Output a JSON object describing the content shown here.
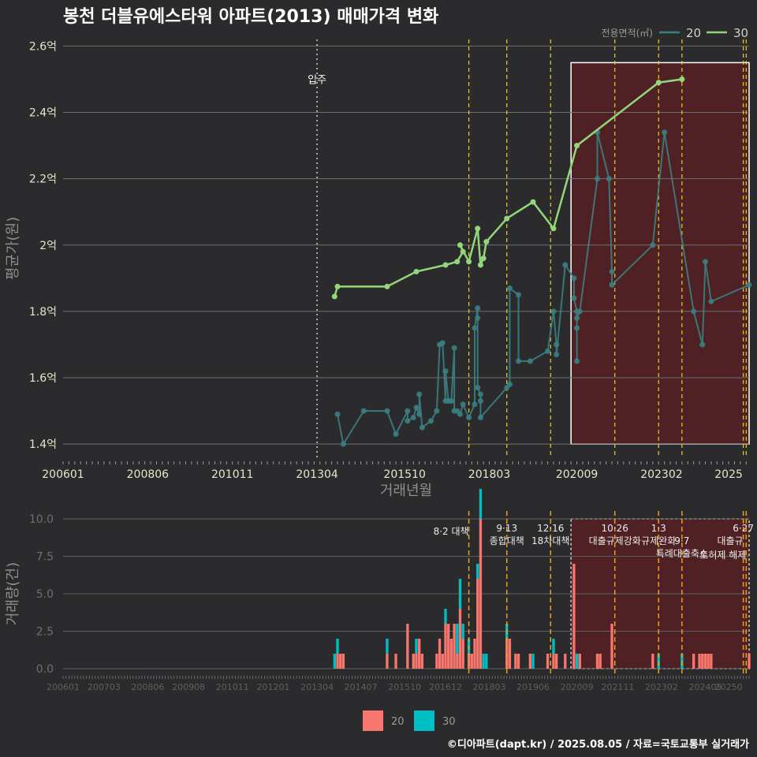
{
  "title": "봉천 더블유에스타워 아파트(2013) 매매가격 변화",
  "legend_top": {
    "title": "전용면적(㎡)",
    "items": [
      {
        "label": "20",
        "color": "#3a7f82"
      },
      {
        "label": "30",
        "color": "#93d77a"
      }
    ]
  },
  "legend_bottom": {
    "items": [
      {
        "label": "20",
        "color": "#f8766d"
      },
      {
        "label": "30",
        "color": "#00bfc4"
      }
    ]
  },
  "footer": "©디아파트(dapt.kr) / 2025.08.05 / 자료=국토교통부 실거래가",
  "chart_data": [
    {
      "type": "line",
      "title": "봉천 더블유에스타워 아파트(2013) 매매가격 변화",
      "xlabel": "거래년월",
      "ylabel": "평균가(원)",
      "x_ticks": [
        "200601",
        "200806",
        "201011",
        "201304",
        "201510",
        "201803",
        "202009",
        "202302",
        "2025"
      ],
      "y_ticks": [
        "1.4억",
        "1.6억",
        "1.8억",
        "2억",
        "2.2억",
        "2.4억",
        "2.6억"
      ],
      "ylim": [
        1.36,
        2.62
      ],
      "xlim": [
        "2006-01",
        "2025-08"
      ],
      "grid": true,
      "legend_position": "top-right",
      "annotations": [
        {
          "x": "2013-04",
          "text": "입주"
        }
      ],
      "highlight": {
        "from": "2020-07",
        "to": "2025-08"
      },
      "vlines": [
        "2017-08",
        "2018-09",
        "2019-12",
        "2021-10",
        "2023-01",
        "2023-09",
        "2025-06",
        "2025-07"
      ],
      "series": [
        {
          "name": "20",
          "color": "#3a7f82",
          "points": [
            [
              "2013-11",
              1.49
            ],
            [
              "2014-01",
              1.4
            ],
            [
              "2014-08",
              1.5
            ],
            [
              "2015-04",
              1.5
            ],
            [
              "2015-07",
              1.43
            ],
            [
              "2015-11",
              1.5
            ],
            [
              "2015-11",
              1.47
            ],
            [
              "2016-01",
              1.48
            ],
            [
              "2016-02",
              1.51
            ],
            [
              "2016-03",
              1.49
            ],
            [
              "2016-03",
              1.55
            ],
            [
              "2016-04",
              1.45
            ],
            [
              "2016-07",
              1.47
            ],
            [
              "2016-09",
              1.5
            ],
            [
              "2016-10",
              1.7
            ],
            [
              "2016-11",
              1.705
            ],
            [
              "2016-12",
              1.53
            ],
            [
              "2016-12",
              1.62
            ],
            [
              "2017-01",
              1.53
            ],
            [
              "2017-02",
              1.53
            ],
            [
              "2017-03",
              1.69
            ],
            [
              "2017-03",
              1.5
            ],
            [
              "2017-04",
              1.5
            ],
            [
              "2017-05",
              1.49
            ],
            [
              "2017-06",
              1.52
            ],
            [
              "2017-08",
              1.48
            ],
            [
              "2017-10",
              1.52
            ],
            [
              "2017-10",
              1.75
            ],
            [
              "2017-11",
              1.81
            ],
            [
              "2017-11",
              1.78
            ],
            [
              "2017-11",
              1.57
            ],
            [
              "2017-12",
              1.55
            ],
            [
              "2017-12",
              1.53
            ],
            [
              "2017-12",
              1.48
            ],
            [
              "2018-09",
              1.57
            ],
            [
              "2018-10",
              1.58
            ],
            [
              "2018-10",
              1.87
            ],
            [
              "2019-01",
              1.85
            ],
            [
              "2019-01",
              1.65
            ],
            [
              "2019-05",
              1.65
            ],
            [
              "2019-11",
              1.68
            ],
            [
              "2020-01",
              1.8
            ],
            [
              "2020-02",
              1.7
            ],
            [
              "2020-02",
              1.67
            ],
            [
              "2020-05",
              1.94
            ],
            [
              "2020-08",
              1.9
            ],
            [
              "2020-08",
              1.84
            ],
            [
              "2020-09",
              1.8
            ],
            [
              "2020-09",
              1.75
            ],
            [
              "2020-09",
              1.65
            ],
            [
              "2020-09",
              1.78
            ],
            [
              "2020-10",
              1.8
            ],
            [
              "2021-04",
              2.2
            ],
            [
              "2021-04",
              2.34
            ],
            [
              "2021-08",
              2.2
            ],
            [
              "2021-09",
              1.92
            ],
            [
              "2021-09",
              1.88
            ],
            [
              "2022-11",
              2.0
            ],
            [
              "2023-03",
              2.34
            ],
            [
              "2024-01",
              1.8
            ],
            [
              "2024-04",
              1.7
            ],
            [
              "2024-05",
              1.95
            ],
            [
              "2024-07",
              1.83
            ],
            [
              "2025-08",
              1.88
            ]
          ]
        },
        {
          "name": "30",
          "color": "#93d77a",
          "points": [
            [
              "2013-10",
              1.845
            ],
            [
              "2013-11",
              1.875
            ],
            [
              "2015-04",
              1.875
            ],
            [
              "2016-02",
              1.92
            ],
            [
              "2016-12",
              1.94
            ],
            [
              "2017-04",
              1.95
            ],
            [
              "2017-06",
              1.98
            ],
            [
              "2017-05",
              2.0
            ],
            [
              "2017-08",
              1.95
            ],
            [
              "2017-11",
              2.05
            ],
            [
              "2017-12",
              1.94
            ],
            [
              "2018-01",
              1.96
            ],
            [
              "2018-02",
              2.01
            ],
            [
              "2018-09",
              2.08
            ],
            [
              "2019-06",
              2.13
            ],
            [
              "2020-01",
              2.05
            ],
            [
              "2020-09",
              2.3
            ],
            [
              "2023-01",
              2.49
            ],
            [
              "2023-09",
              2.5
            ]
          ]
        }
      ]
    },
    {
      "type": "bar",
      "ylabel": "거래량(건)",
      "ylim": [
        0,
        10
      ],
      "y_ticks": [
        "0.0",
        "2.5",
        "5.0",
        "7.5",
        "10.0"
      ],
      "x_ticks": [
        "200601",
        "200703",
        "200806",
        "200908",
        "201011",
        "201201",
        "201304",
        "201407",
        "201510",
        "201612",
        "201803",
        "201906",
        "202009",
        "202111",
        "202302",
        "202405",
        "20250"
      ],
      "policy_lines": [
        {
          "x": "2017-08",
          "label": "8·2 대책"
        },
        {
          "x": "2018-09",
          "label": "9·13",
          "sub": "종합대책"
        },
        {
          "x": "2019-12",
          "label": "12·16",
          "sub": "18차대책"
        },
        {
          "x": "2021-10",
          "label": "10·26",
          "sub": "대출규제강화"
        },
        {
          "x": "2023-01",
          "label": "1·3",
          "sub": "규제완화"
        },
        {
          "x": "2023-09",
          "label": "9·7",
          "sub": "특례대출축소"
        },
        {
          "x": "2025-06",
          "label": "6·27",
          "sub": "대출규"
        },
        {
          "x": "2025-07",
          "label": "",
          "sub": "토허제 해제"
        }
      ],
      "series": [
        {
          "name": "20",
          "color": "#f8766d",
          "points": [
            [
              "2013-11",
              1
            ],
            [
              "2013-12",
              1
            ],
            [
              "2014-01",
              1
            ],
            [
              "2015-04",
              1
            ],
            [
              "2015-07",
              1
            ],
            [
              "2015-11",
              3
            ],
            [
              "2016-01",
              1
            ],
            [
              "2016-02",
              1
            ],
            [
              "2016-03",
              2
            ],
            [
              "2016-04",
              1
            ],
            [
              "2016-09",
              1
            ],
            [
              "2016-10",
              2
            ],
            [
              "2016-11",
              1
            ],
            [
              "2016-12",
              3
            ],
            [
              "2017-01",
              3
            ],
            [
              "2017-02",
              2
            ],
            [
              "2017-03",
              3
            ],
            [
              "2017-04",
              1
            ],
            [
              "2017-05",
              4
            ],
            [
              "2017-06",
              2
            ],
            [
              "2017-08",
              1
            ],
            [
              "2017-09",
              1
            ],
            [
              "2017-10",
              2
            ],
            [
              "2017-11",
              6
            ],
            [
              "2017-12",
              10
            ],
            [
              "2018-09",
              2
            ],
            [
              "2018-10",
              2
            ],
            [
              "2018-12",
              1
            ],
            [
              "2019-01",
              1
            ],
            [
              "2019-05",
              1
            ],
            [
              "2019-11",
              1
            ],
            [
              "2020-01",
              1
            ],
            [
              "2020-02",
              1
            ],
            [
              "2020-05",
              1
            ],
            [
              "2020-08",
              7
            ],
            [
              "2020-10",
              1
            ],
            [
              "2021-04",
              1
            ],
            [
              "2021-05",
              1
            ],
            [
              "2021-09",
              3
            ],
            [
              "2022-11",
              1
            ],
            [
              "2024-01",
              1
            ],
            [
              "2024-03",
              1
            ],
            [
              "2024-04",
              1
            ],
            [
              "2024-05",
              1
            ],
            [
              "2024-06",
              1
            ],
            [
              "2024-07",
              1
            ],
            [
              "2025-08",
              1
            ]
          ]
        },
        {
          "name": "30",
          "color": "#00bfc4",
          "points": [
            [
              "2013-10",
              1
            ],
            [
              "2013-11",
              1
            ],
            [
              "2015-04",
              1
            ],
            [
              "2016-02",
              1
            ],
            [
              "2016-12",
              1
            ],
            [
              "2017-04",
              2
            ],
            [
              "2017-05",
              2
            ],
            [
              "2017-06",
              1
            ],
            [
              "2017-08",
              1
            ],
            [
              "2017-11",
              1
            ],
            [
              "2017-12",
              2
            ],
            [
              "2018-01",
              1
            ],
            [
              "2018-02",
              1
            ],
            [
              "2018-09",
              1
            ],
            [
              "2019-06",
              1
            ],
            [
              "2020-01",
              1
            ],
            [
              "2020-09",
              1
            ],
            [
              "2023-01",
              1
            ],
            [
              "2023-09",
              1
            ]
          ]
        }
      ]
    }
  ]
}
